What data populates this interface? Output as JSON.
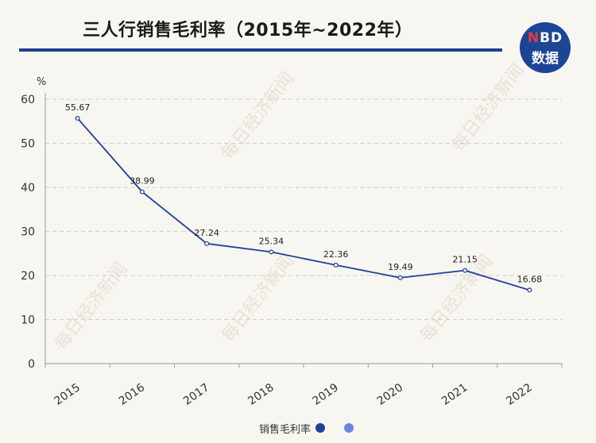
{
  "title": "三人行销售毛利率（2015年~2022年）",
  "logo": {
    "n": "N",
    "bd": "BD",
    "sub": "数据"
  },
  "watermark": "每日经济新闻",
  "colors": {
    "line": "#1f3f9a",
    "legend_dot_1": "#1f3f9a",
    "legend_dot_2": "#6a84e0",
    "rule": "#1f3f8f"
  },
  "chart_data": {
    "type": "line",
    "categories": [
      "2015",
      "2016",
      "2017",
      "2018",
      "2019",
      "2020",
      "2021",
      "2022"
    ],
    "series": [
      {
        "name": "销售毛利率",
        "values": [
          55.67,
          38.99,
          27.24,
          25.34,
          22.36,
          19.49,
          21.15,
          16.68
        ]
      }
    ],
    "ylabel": "%",
    "ylim": [
      0,
      60
    ],
    "yticks": [
      0,
      10,
      20,
      30,
      40,
      50,
      60
    ],
    "grid": true,
    "legend": "bottom-center"
  },
  "legend": {
    "label": "销售毛利率"
  }
}
